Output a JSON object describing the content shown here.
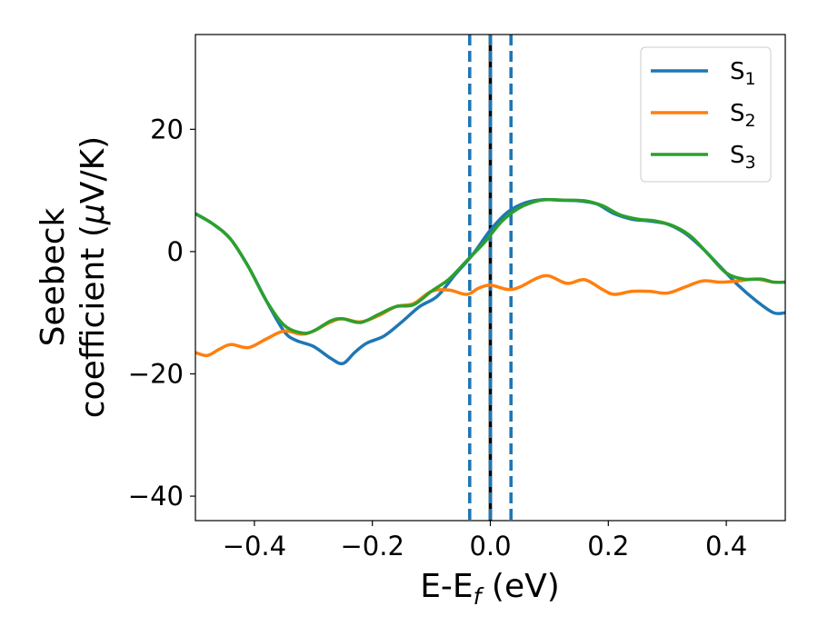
{
  "chart_data": {
    "type": "line",
    "xlabel": {
      "main": "E-E",
      "sub": "f",
      "unit": " (eV)"
    },
    "ylabel": {
      "line1": "Seebeck",
      "line2_pre": "coefficient  (",
      "line2_mu": "μ",
      "line2_post": "V/K)"
    },
    "xlim": [
      -0.5,
      0.5
    ],
    "ylim": [
      -44,
      35.5
    ],
    "xticks": [
      -0.4,
      -0.2,
      0.0,
      0.2,
      0.4
    ],
    "xtick_labels": [
      "−0.4",
      "−0.2",
      "0.0",
      "0.2",
      "0.4"
    ],
    "yticks": [
      20,
      0,
      -20,
      -40
    ],
    "ytick_labels": [
      "20",
      "0",
      "−20",
      "−40"
    ],
    "grid": false,
    "legend_position": "top-right",
    "vertical_lines": [
      {
        "x": -0.035,
        "style": "dashed",
        "color": "#1f77b4"
      },
      {
        "x": 0.0,
        "style": "dashed-black-blue",
        "color": "#000000"
      },
      {
        "x": 0.035,
        "style": "dashed",
        "color": "#1f77b4"
      }
    ],
    "series": [
      {
        "name": "S",
        "sub": "1",
        "color": "#1f77b4",
        "points": [
          [
            -0.5,
            6.2
          ],
          [
            -0.47,
            4.5
          ],
          [
            -0.44,
            2
          ],
          [
            -0.41,
            -2.5
          ],
          [
            -0.38,
            -8
          ],
          [
            -0.35,
            -13
          ],
          [
            -0.33,
            -14.5
          ],
          [
            -0.3,
            -15.5
          ],
          [
            -0.27,
            -17.5
          ],
          [
            -0.25,
            -18.3
          ],
          [
            -0.23,
            -16.5
          ],
          [
            -0.21,
            -15
          ],
          [
            -0.18,
            -13.8
          ],
          [
            -0.15,
            -11.5
          ],
          [
            -0.12,
            -9
          ],
          [
            -0.09,
            -7.3
          ],
          [
            -0.06,
            -3.8
          ],
          [
            -0.03,
            -0.5
          ],
          [
            0.0,
            3.5
          ],
          [
            0.03,
            6.5
          ],
          [
            0.06,
            8
          ],
          [
            0.09,
            8.5
          ],
          [
            0.12,
            8.4
          ],
          [
            0.15,
            8.3
          ],
          [
            0.18,
            7.8
          ],
          [
            0.21,
            6.2
          ],
          [
            0.24,
            5.3
          ],
          [
            0.27,
            5
          ],
          [
            0.3,
            4.5
          ],
          [
            0.33,
            3
          ],
          [
            0.36,
            0.5
          ],
          [
            0.39,
            -2.5
          ],
          [
            0.42,
            -5.5
          ],
          [
            0.45,
            -8
          ],
          [
            0.48,
            -10
          ],
          [
            0.5,
            -10
          ]
        ]
      },
      {
        "name": "S",
        "sub": "2",
        "color": "#ff7f0e",
        "points": [
          [
            -0.5,
            -16.5
          ],
          [
            -0.48,
            -17
          ],
          [
            -0.46,
            -16
          ],
          [
            -0.44,
            -15.2
          ],
          [
            -0.41,
            -15.7
          ],
          [
            -0.38,
            -14.3
          ],
          [
            -0.35,
            -13
          ],
          [
            -0.32,
            -13.5
          ],
          [
            -0.3,
            -13
          ],
          [
            -0.27,
            -11.5
          ],
          [
            -0.25,
            -11
          ],
          [
            -0.22,
            -11.5
          ],
          [
            -0.19,
            -10.5
          ],
          [
            -0.16,
            -9
          ],
          [
            -0.13,
            -8.5
          ],
          [
            -0.1,
            -6.5
          ],
          [
            -0.07,
            -6.3
          ],
          [
            -0.04,
            -7
          ],
          [
            -0.02,
            -6
          ],
          [
            0.0,
            -5.5
          ],
          [
            0.03,
            -6.2
          ],
          [
            0.05,
            -5.8
          ],
          [
            0.08,
            -4.3
          ],
          [
            0.1,
            -4
          ],
          [
            0.13,
            -5.2
          ],
          [
            0.16,
            -4.6
          ],
          [
            0.19,
            -6.2
          ],
          [
            0.21,
            -7
          ],
          [
            0.24,
            -6.5
          ],
          [
            0.27,
            -6.5
          ],
          [
            0.3,
            -6.8
          ],
          [
            0.33,
            -5.8
          ],
          [
            0.36,
            -4.8
          ],
          [
            0.39,
            -5
          ],
          [
            0.42,
            -4.8
          ],
          [
            0.45,
            -4.5
          ],
          [
            0.48,
            -5
          ],
          [
            0.5,
            -5
          ]
        ]
      },
      {
        "name": "S",
        "sub": "3",
        "color": "#2ca02c",
        "points": [
          [
            -0.5,
            6.2
          ],
          [
            -0.47,
            4.5
          ],
          [
            -0.44,
            2
          ],
          [
            -0.41,
            -2.5
          ],
          [
            -0.38,
            -8
          ],
          [
            -0.35,
            -12
          ],
          [
            -0.32,
            -13.3
          ],
          [
            -0.3,
            -13
          ],
          [
            -0.27,
            -11.3
          ],
          [
            -0.25,
            -11
          ],
          [
            -0.22,
            -11.6
          ],
          [
            -0.19,
            -10.3
          ],
          [
            -0.16,
            -9
          ],
          [
            -0.13,
            -8.7
          ],
          [
            -0.1,
            -6.5
          ],
          [
            -0.07,
            -4.5
          ],
          [
            -0.04,
            -1.5
          ],
          [
            -0.01,
            1.5
          ],
          [
            0.02,
            5
          ],
          [
            0.05,
            7.2
          ],
          [
            0.08,
            8.3
          ],
          [
            0.1,
            8.5
          ],
          [
            0.13,
            8.4
          ],
          [
            0.16,
            8.3
          ],
          [
            0.19,
            7.5
          ],
          [
            0.22,
            6
          ],
          [
            0.25,
            5.3
          ],
          [
            0.28,
            5
          ],
          [
            0.31,
            4.2
          ],
          [
            0.34,
            2.5
          ],
          [
            0.37,
            -0.5
          ],
          [
            0.4,
            -3.5
          ],
          [
            0.43,
            -4.5
          ],
          [
            0.46,
            -4.5
          ],
          [
            0.48,
            -5
          ],
          [
            0.5,
            -5
          ]
        ]
      }
    ]
  }
}
